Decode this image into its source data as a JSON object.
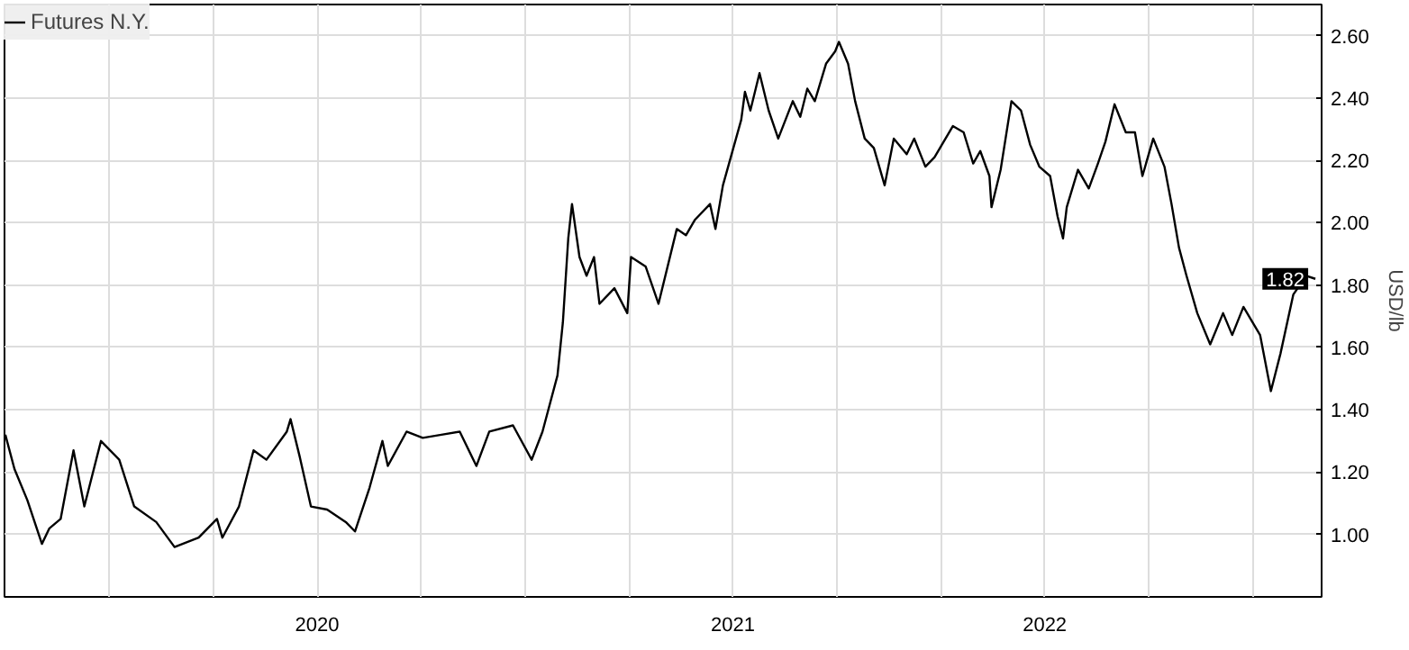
{
  "chart_data": {
    "type": "line",
    "ylabel": "USD/lb",
    "legend": "top left",
    "grid": true,
    "marker": "none",
    "line_style": "solid",
    "xlim": [
      2019.748,
      2022.916
    ],
    "ylim": [
      0.8,
      2.7
    ],
    "xticks": [
      {
        "value": 2020.0,
        "label": null
      },
      {
        "value": 2020.25,
        "label": null
      },
      {
        "value": 2020.5,
        "label": "2020"
      },
      {
        "value": 2020.75,
        "label": null
      },
      {
        "value": 2021.0,
        "label": null
      },
      {
        "value": 2021.25,
        "label": null
      },
      {
        "value": 2021.5,
        "label": "2021"
      },
      {
        "value": 2021.75,
        "label": null
      },
      {
        "value": 2022.0,
        "label": null
      },
      {
        "value": 2022.25,
        "label": "2022"
      },
      {
        "value": 2022.5,
        "label": null
      },
      {
        "value": 2022.75,
        "label": null
      }
    ],
    "yticks": [
      {
        "value": 1.0,
        "label": "1.00"
      },
      {
        "value": 1.2,
        "label": "1.20"
      },
      {
        "value": 1.4,
        "label": "1.40"
      },
      {
        "value": 1.6,
        "label": "1.60"
      },
      {
        "value": 1.8,
        "label": "1.80"
      },
      {
        "value": 2.0,
        "label": "2.00"
      },
      {
        "value": 2.2,
        "label": "2.20"
      },
      {
        "value": 2.4,
        "label": "2.40"
      },
      {
        "value": 2.6,
        "label": "2.60"
      }
    ],
    "annotations": [
      {
        "text": "1.82",
        "x": 2022.901,
        "y": 1.82
      }
    ],
    "series": [
      {
        "name": "Futures N.Y.",
        "color": "#000000",
        "x": [
          2019.75,
          2019.772,
          2019.803,
          2019.838,
          2019.856,
          2019.883,
          2019.914,
          2019.94,
          2019.98,
          2020.024,
          2020.06,
          2020.113,
          2020.157,
          2020.215,
          2020.259,
          2020.272,
          2020.312,
          2020.347,
          2020.378,
          2020.427,
          2020.436,
          2020.458,
          2020.485,
          2020.524,
          2020.569,
          2020.591,
          2020.626,
          2020.657,
          2020.67,
          2020.715,
          2020.754,
          2020.799,
          2020.843,
          2020.883,
          2020.914,
          2020.971,
          2021.016,
          2021.042,
          2021.078,
          2021.091,
          2021.104,
          2021.113,
          2021.131,
          2021.148,
          2021.166,
          2021.179,
          2021.215,
          2021.246,
          2021.255,
          2021.29,
          2021.321,
          2021.365,
          2021.387,
          2021.409,
          2021.445,
          2021.458,
          2021.476,
          2021.52,
          2021.529,
          2021.542,
          2021.564,
          2021.586,
          2021.609,
          2021.644,
          2021.662,
          2021.679,
          2021.697,
          2021.724,
          2021.746,
          2021.755,
          2021.777,
          2021.794,
          2021.817,
          2021.839,
          2021.865,
          2021.887,
          2021.918,
          2021.936,
          2021.963,
          2021.985,
          2022.029,
          2022.055,
          2022.078,
          2022.095,
          2022.117,
          2022.122,
          2022.144,
          2022.17,
          2022.193,
          2022.215,
          2022.237,
          2022.263,
          2022.281,
          2022.294,
          2022.303,
          2022.33,
          2022.356,
          2022.378,
          2022.396,
          2022.418,
          2022.445,
          2022.467,
          2022.485,
          2022.511,
          2022.538,
          2022.555,
          2022.573,
          2022.591,
          2022.617,
          2022.648,
          2022.679,
          2022.701,
          2022.728,
          2022.768,
          2022.794,
          2022.817,
          2022.848,
          2022.879,
          2022.901
        ],
        "values": [
          1.32,
          1.21,
          1.11,
          0.97,
          1.02,
          1.05,
          1.27,
          1.09,
          1.3,
          1.24,
          1.09,
          1.04,
          0.96,
          0.99,
          1.05,
          0.99,
          1.09,
          1.27,
          1.24,
          1.33,
          1.37,
          1.25,
          1.09,
          1.08,
          1.04,
          1.01,
          1.15,
          1.3,
          1.22,
          1.33,
          1.31,
          1.32,
          1.33,
          1.22,
          1.33,
          1.35,
          1.24,
          1.33,
          1.51,
          1.68,
          1.95,
          2.06,
          1.89,
          1.83,
          1.89,
          1.74,
          1.79,
          1.71,
          1.89,
          1.86,
          1.74,
          1.98,
          1.96,
          2.01,
          2.06,
          1.98,
          2.12,
          2.33,
          2.42,
          2.36,
          2.48,
          2.36,
          2.27,
          2.39,
          2.34,
          2.43,
          2.39,
          2.51,
          2.55,
          2.58,
          2.51,
          2.39,
          2.27,
          2.24,
          2.12,
          2.27,
          2.22,
          2.27,
          2.18,
          2.21,
          2.31,
          2.29,
          2.19,
          2.23,
          2.15,
          2.05,
          2.17,
          2.39,
          2.36,
          2.25,
          2.18,
          2.15,
          2.02,
          1.95,
          2.05,
          2.17,
          2.11,
          2.19,
          2.26,
          2.38,
          2.29,
          2.29,
          2.15,
          2.27,
          2.18,
          2.06,
          1.92,
          1.83,
          1.71,
          1.61,
          1.71,
          1.64,
          1.73,
          1.64,
          1.46,
          1.58,
          1.77,
          1.83,
          1.82
        ]
      }
    ]
  }
}
